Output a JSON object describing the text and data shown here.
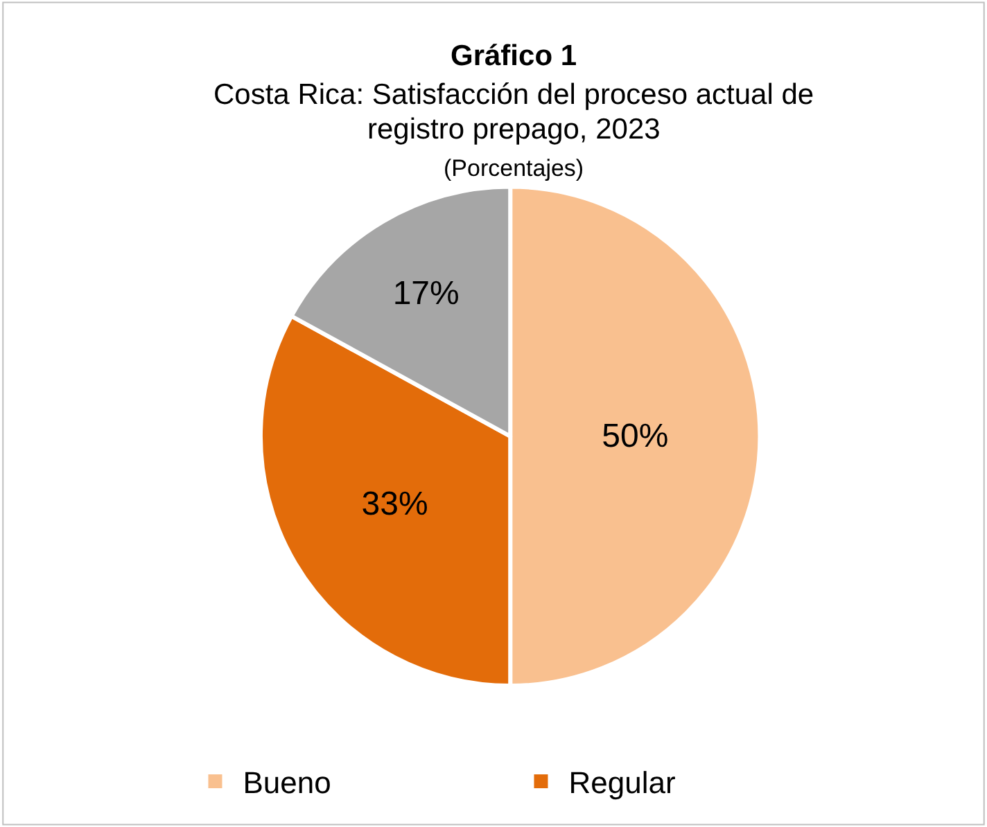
{
  "chart_data": {
    "type": "pie",
    "title": "Gráfico 1",
    "subtitle": "Costa Rica: Satisfacción del proceso actual de registro prepago, 2023",
    "annotations": [
      "(Porcentajes)"
    ],
    "categories": [
      "Bueno",
      "Regular",
      null
    ],
    "values": [
      50,
      33,
      17
    ],
    "colors": [
      "#f9c08f",
      "#e36c0a",
      "#a6a6a6"
    ],
    "value_labels": [
      "50%",
      "33%",
      "17%"
    ],
    "legend": "bottom"
  }
}
